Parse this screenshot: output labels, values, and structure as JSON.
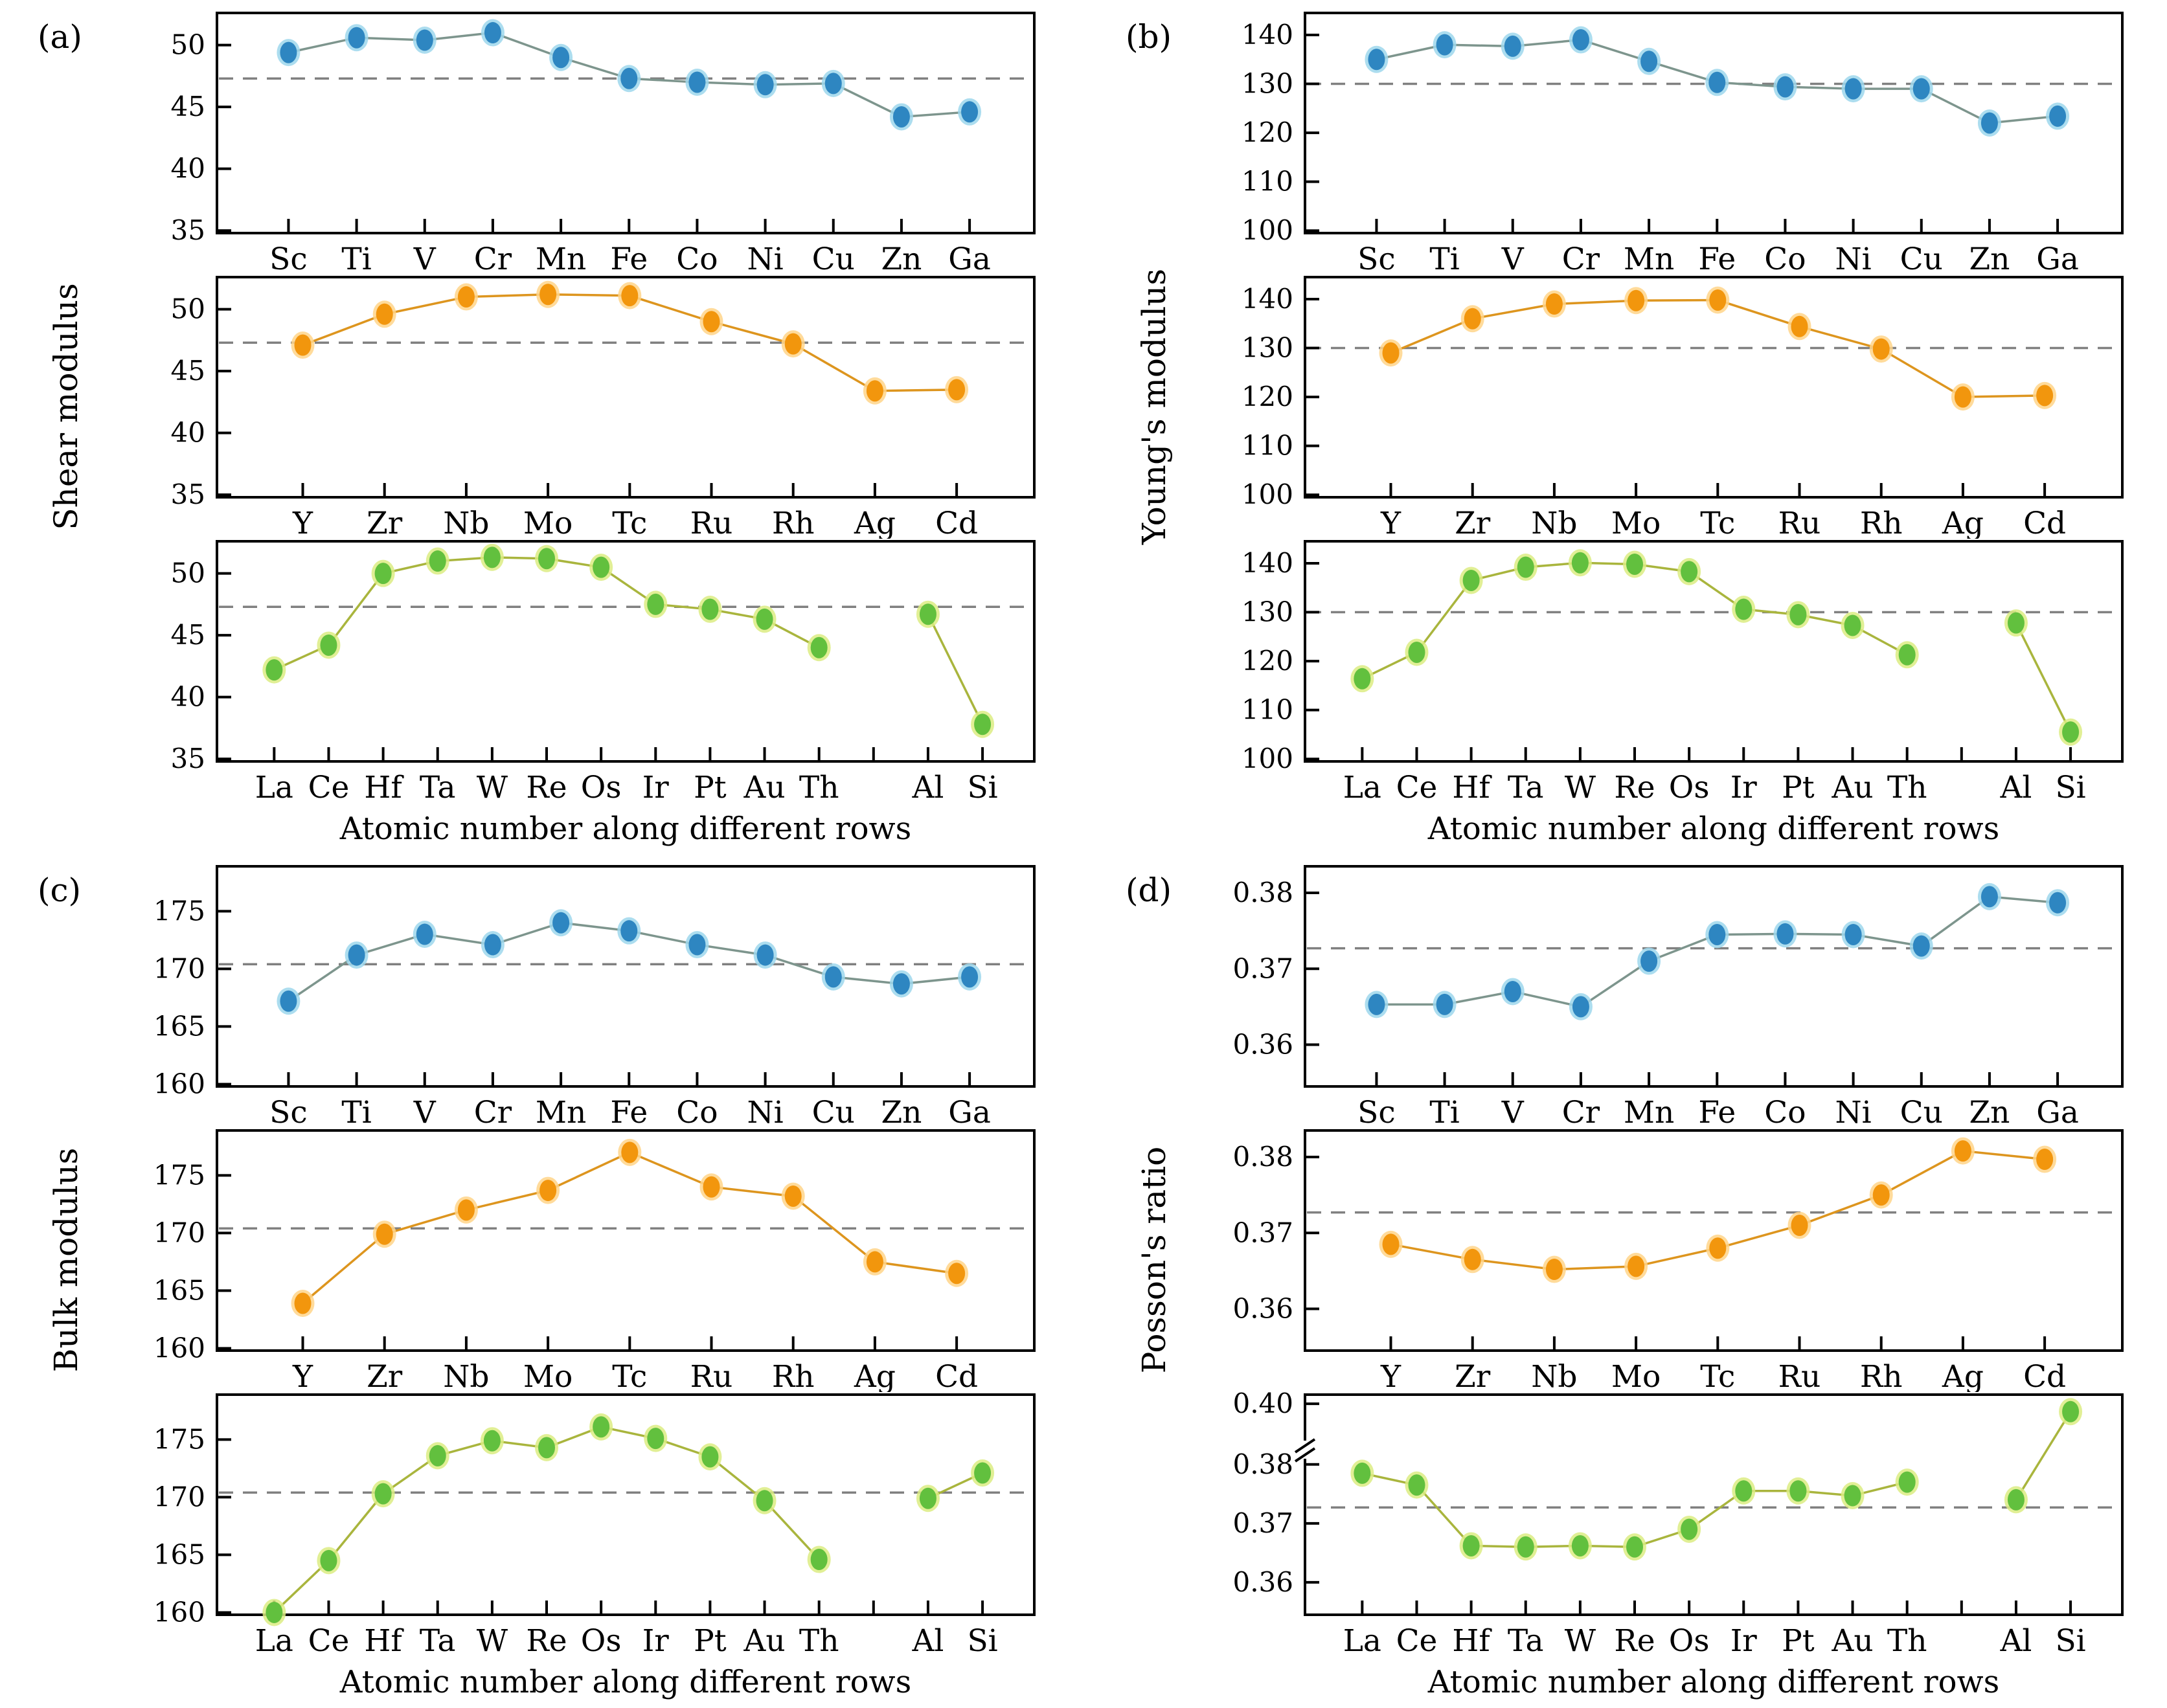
{
  "figure": {
    "background": "#ffffff",
    "reference_line_style": "dashed gray",
    "colors": {
      "row_3d_marker": "#2e86c1",
      "row_3d_halo": "#9ed7ec",
      "row_3d_line": "#7d958d",
      "row_4d_marker": "#f2960d",
      "row_4d_halo": "#ffd58a",
      "row_4d_line": "#dd951e",
      "row_5d_marker": "#62c03e",
      "row_5d_halo": "#dcec82",
      "row_5d_line": "#a9b53d",
      "dashed_reference": "#808080",
      "axis": "#000000"
    }
  },
  "chart_data": [
    {
      "type": "line",
      "panel": "(a)",
      "ylabel": "Shear modulus",
      "xlabel": "Atomic number along different rows",
      "yticks": [
        35,
        40,
        45,
        50
      ],
      "ylim": [
        34.8,
        52.6
      ],
      "reference_line": 47.3,
      "legend": "none",
      "grid": false,
      "subplots": [
        {
          "name": "3d-row",
          "marker": "#2e86c1",
          "halo": "#9ed7ec",
          "line": "#7d958d",
          "categories": [
            "Sc",
            "Ti",
            "V",
            "Cr",
            "Mn",
            "Fe",
            "Co",
            "Ni",
            "Cu",
            "Zn",
            "Ga"
          ],
          "values": [
            49.4,
            50.6,
            50.4,
            51.0,
            49.0,
            47.3,
            47.0,
            46.8,
            46.9,
            44.2,
            44.6
          ]
        },
        {
          "name": "4d-row",
          "marker": "#f2960d",
          "halo": "#ffd58a",
          "line": "#dd951e",
          "categories": [
            "Y",
            "Zr",
            "Nb",
            "Mo",
            "Tc",
            "Ru",
            "Rh",
            "Ag",
            "Cd"
          ],
          "values": [
            47.1,
            49.6,
            51.0,
            51.2,
            51.1,
            49.0,
            47.2,
            43.4,
            43.5
          ]
        },
        {
          "name": "5d-row",
          "marker": "#62c03e",
          "halo": "#dcec82",
          "line": "#a9b53d",
          "categories": [
            "La",
            "Ce",
            "Hf",
            "Ta",
            "W",
            "Re",
            "Os",
            "Ir",
            "Pt",
            "Au",
            "Th",
            "",
            "Al",
            "Si"
          ],
          "values": [
            42.2,
            44.2,
            50.0,
            51.0,
            51.3,
            51.2,
            50.5,
            47.5,
            47.1,
            46.3,
            44.0,
            null,
            46.7,
            37.8
          ]
        }
      ]
    },
    {
      "type": "line",
      "panel": "(b)",
      "ylabel": "Young's modulus",
      "xlabel": "Atomic number along different rows",
      "yticks": [
        100,
        110,
        120,
        130,
        140
      ],
      "ylim": [
        99.5,
        144.5
      ],
      "reference_line": 130.0,
      "legend": "none",
      "grid": false,
      "subplots": [
        {
          "name": "3d-row",
          "marker": "#2e86c1",
          "halo": "#9ed7ec",
          "line": "#7d958d",
          "categories": [
            "Sc",
            "Ti",
            "V",
            "Cr",
            "Mn",
            "Fe",
            "Co",
            "Ni",
            "Cu",
            "Zn",
            "Ga"
          ],
          "values": [
            135.0,
            138.0,
            137.7,
            139.0,
            134.6,
            130.3,
            129.4,
            129.0,
            129.0,
            122.0,
            123.4
          ]
        },
        {
          "name": "4d-row",
          "marker": "#f2960d",
          "halo": "#ffd58a",
          "line": "#dd951e",
          "categories": [
            "Y",
            "Zr",
            "Nb",
            "Mo",
            "Tc",
            "Ru",
            "Rh",
            "Ag",
            "Cd"
          ],
          "values": [
            129.0,
            136.0,
            139.0,
            139.7,
            139.8,
            134.4,
            129.8,
            120.0,
            120.3
          ]
        },
        {
          "name": "5d-row",
          "marker": "#62c03e",
          "halo": "#dcec82",
          "line": "#a9b53d",
          "categories": [
            "La",
            "Ce",
            "Hf",
            "Ta",
            "W",
            "Re",
            "Os",
            "Ir",
            "Pt",
            "Au",
            "Th",
            "",
            "Al",
            "Si"
          ],
          "values": [
            116.4,
            121.8,
            136.5,
            139.2,
            140.1,
            139.8,
            138.3,
            130.6,
            129.5,
            127.3,
            121.3,
            null,
            127.8,
            105.5
          ]
        }
      ]
    },
    {
      "type": "line",
      "panel": "(c)",
      "ylabel": "Bulk modulus",
      "xlabel": "Atomic number along different rows",
      "yticks": [
        160,
        165,
        170,
        175
      ],
      "ylim": [
        159.8,
        178.9
      ],
      "reference_line": 170.4,
      "legend": "none",
      "grid": false,
      "subplots": [
        {
          "name": "3d-row",
          "marker": "#2e86c1",
          "halo": "#9ed7ec",
          "line": "#7d958d",
          "categories": [
            "Sc",
            "Ti",
            "V",
            "Cr",
            "Mn",
            "Fe",
            "Co",
            "Ni",
            "Cu",
            "Zn",
            "Ga"
          ],
          "values": [
            167.2,
            171.2,
            173.0,
            172.1,
            174.0,
            173.3,
            172.1,
            171.2,
            169.3,
            168.7,
            169.3
          ]
        },
        {
          "name": "4d-row",
          "marker": "#f2960d",
          "halo": "#ffd58a",
          "line": "#dd951e",
          "categories": [
            "Y",
            "Zr",
            "Nb",
            "Mo",
            "Tc",
            "Ru",
            "Rh",
            "Ag",
            "Cd"
          ],
          "values": [
            163.9,
            169.9,
            172.0,
            173.7,
            177.0,
            174.0,
            173.2,
            167.5,
            166.5
          ]
        },
        {
          "name": "5d-row",
          "marker": "#62c03e",
          "halo": "#dcec82",
          "line": "#a9b53d",
          "categories": [
            "La",
            "Ce",
            "Hf",
            "Ta",
            "W",
            "Re",
            "Os",
            "Ir",
            "Pt",
            "Au",
            "Th",
            "",
            "Al",
            "Si"
          ],
          "values": [
            160.0,
            164.5,
            170.3,
            173.6,
            174.9,
            174.3,
            176.1,
            175.1,
            173.5,
            169.7,
            164.6,
            null,
            169.9,
            172.1
          ]
        }
      ]
    },
    {
      "type": "line",
      "panel": "(d)",
      "ylabel": "Posson's ratio",
      "xlabel": "Atomic number along different rows",
      "yticks": [
        0.36,
        0.37,
        0.38
      ],
      "ylim": [
        0.3545,
        0.3835
      ],
      "tick_decimals": 2,
      "reference_line": 0.3727,
      "legend": "none",
      "grid": false,
      "subplots": [
        {
          "name": "3d-row",
          "marker": "#2e86c1",
          "halo": "#9ed7ec",
          "line": "#7d958d",
          "categories": [
            "Sc",
            "Ti",
            "V",
            "Cr",
            "Mn",
            "Fe",
            "Co",
            "Ni",
            "Cu",
            "Zn",
            "Ga"
          ],
          "values": [
            0.3653,
            0.3653,
            0.367,
            0.365,
            0.371,
            0.3745,
            0.3746,
            0.3745,
            0.373,
            0.3795,
            0.3787
          ]
        },
        {
          "name": "4d-row",
          "marker": "#f2960d",
          "halo": "#ffd58a",
          "line": "#dd951e",
          "categories": [
            "Y",
            "Zr",
            "Nb",
            "Mo",
            "Tc",
            "Ru",
            "Rh",
            "Ag",
            "Cd"
          ],
          "values": [
            0.3685,
            0.3665,
            0.3652,
            0.3656,
            0.368,
            0.371,
            0.375,
            0.3808,
            0.3797
          ]
        },
        {
          "name": "5d-row",
          "marker": "#62c03e",
          "halo": "#dcec82",
          "line": "#a9b53d",
          "categories": [
            "La",
            "Ce",
            "Hf",
            "Ta",
            "W",
            "Re",
            "Os",
            "Ir",
            "Pt",
            "Au",
            "Th",
            "",
            "Al",
            "Si"
          ],
          "values": [
            0.3785,
            0.3765,
            0.3662,
            0.366,
            0.3662,
            0.366,
            0.369,
            0.3755,
            0.3755,
            0.3747,
            0.377,
            null,
            0.374,
            0.397
          ],
          "ylim": [
            0.3545,
            0.4035
          ],
          "yticks": [
            0.36,
            0.37,
            0.38,
            0.4
          ],
          "break_at": 0.3825,
          "axis_break": true
        }
      ]
    }
  ]
}
